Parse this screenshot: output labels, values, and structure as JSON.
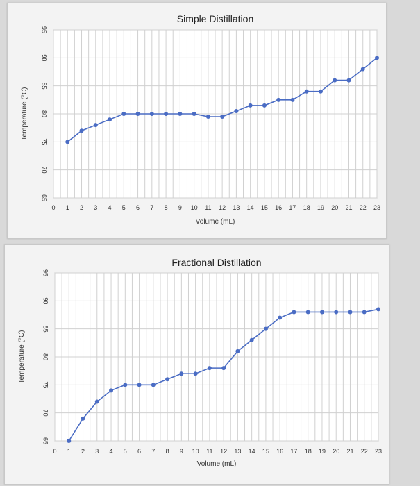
{
  "chart_data": [
    {
      "type": "line",
      "title": "Simple Distillation",
      "xlabel": "Volume (mL)",
      "ylabel": "Temperature (°C)",
      "xlim": [
        0,
        23
      ],
      "ylim": [
        65,
        95
      ],
      "xticks": [
        0,
        1,
        2,
        3,
        4,
        5,
        6,
        7,
        8,
        9,
        10,
        11,
        12,
        13,
        14,
        15,
        16,
        17,
        18,
        19,
        20,
        21,
        22,
        23
      ],
      "yticks": [
        65,
        70,
        75,
        80,
        85,
        90,
        95
      ],
      "grid": true,
      "color": "#4a6cc4",
      "x": [
        1,
        2,
        3,
        4,
        5,
        6,
        7,
        8,
        9,
        10,
        11,
        12,
        13,
        14,
        15,
        16,
        17,
        18,
        19,
        20,
        21,
        22,
        23
      ],
      "y": [
        75,
        77,
        78,
        79,
        80,
        80,
        80,
        80,
        80,
        80,
        79.5,
        79.5,
        80.5,
        81.5,
        81.5,
        82.5,
        82.5,
        84,
        84,
        86,
        86,
        88,
        90
      ]
    },
    {
      "type": "line",
      "title": "Fractional Distillation",
      "xlabel": "Volume (mL)",
      "ylabel": "Temperature (°C)",
      "xlim": [
        0,
        23
      ],
      "ylim": [
        65,
        95
      ],
      "xticks": [
        0,
        1,
        2,
        3,
        4,
        5,
        6,
        7,
        8,
        9,
        10,
        11,
        12,
        13,
        14,
        15,
        16,
        17,
        18,
        19,
        20,
        21,
        22,
        23
      ],
      "yticks": [
        65,
        70,
        75,
        80,
        85,
        90,
        95
      ],
      "grid": true,
      "color": "#4a6cc4",
      "x": [
        1,
        2,
        3,
        4,
        5,
        6,
        7,
        8,
        9,
        10,
        11,
        12,
        13,
        14,
        15,
        16,
        17,
        18,
        19,
        20,
        21,
        22,
        23
      ],
      "y": [
        65,
        69,
        72,
        74,
        75,
        75,
        75,
        76,
        77,
        77,
        78,
        78,
        81,
        83,
        85,
        87,
        88,
        88,
        88,
        88,
        88,
        88,
        88.5
      ]
    }
  ]
}
